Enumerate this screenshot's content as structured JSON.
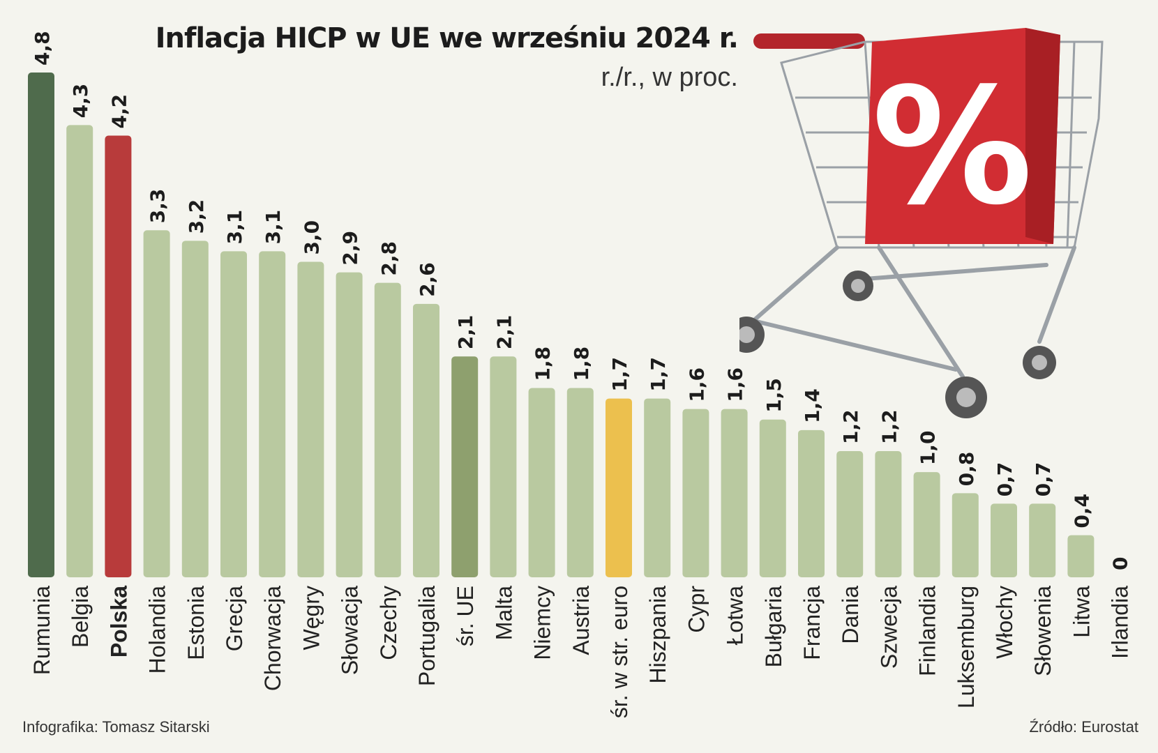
{
  "title": "Inflacja HICP w UE we wrześniu 2024 r.",
  "subtitle": "r./r., w proc.",
  "credit": "Infografika: Tomasz Sitarski",
  "source": "Źródło: Eurostat",
  "cart_sign": "%",
  "colors": {
    "default": "#b9c9a0",
    "highest": "#4f6b4c",
    "poland": "#b83b3b",
    "eu_avg": "#8ea06e",
    "euro_avg": "#ecc04e",
    "cart_box": "#c8262d"
  },
  "chart_data": {
    "type": "bar",
    "title": "Inflacja HICP w UE we wrześniu 2024 r.",
    "subtitle": "r./r., w proc.",
    "ylim": [
      0,
      4.8
    ],
    "categories": [
      "Rumunia",
      "Belgia",
      "Polska",
      "Holandia",
      "Estonia",
      "Grecja",
      "Chorwacja",
      "Węgry",
      "Słowacja",
      "Czechy",
      "Portugalia",
      "śr. UE",
      "Malta",
      "Niemcy",
      "Austria",
      "śr. w str. euro",
      "Hiszpania",
      "Cypr",
      "Łotwa",
      "Bułgaria",
      "Francja",
      "Dania",
      "Szwecja",
      "Finlandia",
      "Luksemburg",
      "Włochy",
      "Słowenia",
      "Litwa",
      "Irlandia"
    ],
    "values": [
      4.8,
      4.3,
      4.2,
      3.3,
      3.2,
      3.1,
      3.1,
      3.0,
      2.9,
      2.8,
      2.6,
      2.1,
      2.1,
      1.8,
      1.8,
      1.7,
      1.7,
      1.6,
      1.6,
      1.5,
      1.4,
      1.2,
      1.2,
      1.0,
      0.8,
      0.7,
      0.7,
      0.4,
      0
    ],
    "value_labels": [
      "4,8",
      "4,3",
      "4,2",
      "3,3",
      "3,2",
      "3,1",
      "3,1",
      "3,0",
      "2,9",
      "2,8",
      "2,6",
      "2,1",
      "2,1",
      "1,8",
      "1,8",
      "1,7",
      "1,7",
      "1,6",
      "1,6",
      "1,5",
      "1,4",
      "1,2",
      "1,2",
      "1,0",
      "0,8",
      "0,7",
      "0,7",
      "0,4",
      "0"
    ],
    "highlight": {
      "Rumunia": "highest",
      "Polska": "poland",
      "śr. UE": "eu_avg",
      "śr. w str. euro": "euro_avg"
    },
    "bold_categories": [
      "Polska"
    ]
  }
}
